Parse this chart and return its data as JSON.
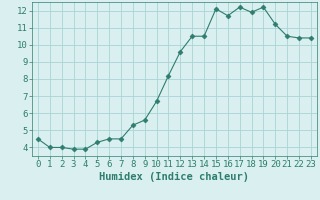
{
  "x": [
    0,
    1,
    2,
    3,
    4,
    5,
    6,
    7,
    8,
    9,
    10,
    11,
    12,
    13,
    14,
    15,
    16,
    17,
    18,
    19,
    20,
    21,
    22,
    23
  ],
  "y": [
    4.5,
    4.0,
    4.0,
    3.9,
    3.9,
    4.3,
    4.5,
    4.5,
    5.3,
    5.6,
    6.7,
    8.2,
    9.6,
    10.5,
    10.5,
    12.1,
    11.7,
    12.2,
    11.9,
    12.2,
    11.2,
    10.5,
    10.4,
    10.4
  ],
  "line_color": "#2e7d6e",
  "marker": "D",
  "marker_size": 2.5,
  "bg_color": "#daf0f0",
  "grid_color": "#aad4d4",
  "xlabel": "Humidex (Indice chaleur)",
  "xlim": [
    -0.5,
    23.5
  ],
  "ylim": [
    3.5,
    12.5
  ],
  "yticks": [
    4,
    5,
    6,
    7,
    8,
    9,
    10,
    11,
    12
  ],
  "xticks": [
    0,
    1,
    2,
    3,
    4,
    5,
    6,
    7,
    8,
    9,
    10,
    11,
    12,
    13,
    14,
    15,
    16,
    17,
    18,
    19,
    20,
    21,
    22,
    23
  ],
  "tick_label_fontsize": 6.5,
  "xlabel_fontsize": 7.5
}
